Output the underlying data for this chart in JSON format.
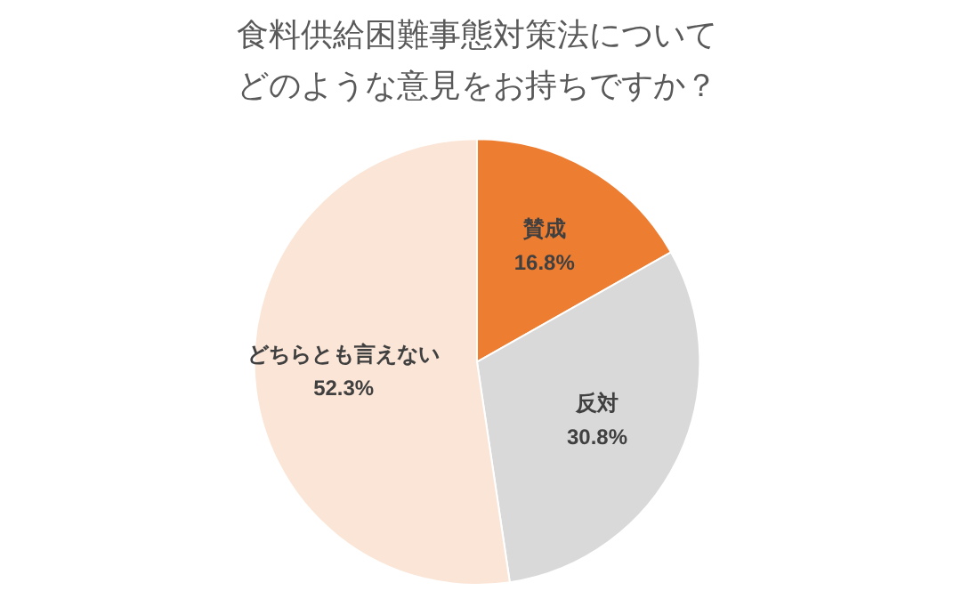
{
  "chart_data": {
    "type": "pie",
    "title": "食料供給困難事態対策法についてどのような意見をお持ちですか？",
    "categories": [
      "賛成",
      "反対",
      "どちらとも言えない"
    ],
    "values": [
      16.8,
      30.8,
      52.3
    ],
    "colors": [
      "#ed7d31",
      "#d9d9d9",
      "#fbe5d6"
    ],
    "value_labels": [
      "16.8%",
      "30.8%",
      "52.3%"
    ],
    "legend": false
  }
}
